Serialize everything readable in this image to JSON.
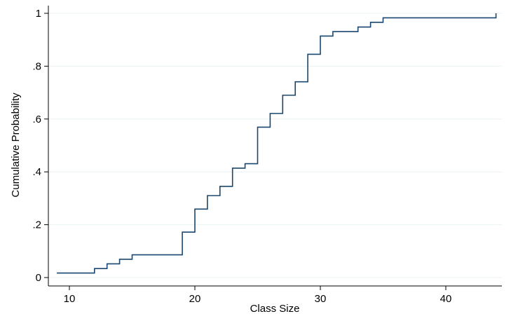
{
  "chart_data": {
    "type": "line",
    "step": true,
    "title": "",
    "xlabel": "Class Size",
    "ylabel": "Cumulative Probability",
    "xlim": [
      8,
      45
    ],
    "ylim": [
      0,
      1
    ],
    "x_ticks": [
      10,
      20,
      30,
      40
    ],
    "x_tick_labels": [
      "10",
      "20",
      "30",
      "40"
    ],
    "y_ticks": [
      0,
      0.2,
      0.4,
      0.6,
      0.8,
      1
    ],
    "y_tick_labels": [
      "0",
      ".2",
      ".4",
      ".6",
      ".8",
      "1"
    ],
    "grid": true,
    "legend": "none",
    "line_color": "#1a476f",
    "grid_color": "#eaf2f3",
    "series": [
      {
        "x": [
          9,
          12,
          13,
          14,
          15,
          19,
          20,
          21,
          22,
          23,
          24,
          25,
          26,
          27,
          28,
          29,
          30,
          31,
          33,
          34,
          35,
          44,
          44
        ],
        "y": [
          0.017,
          0.034,
          0.052,
          0.069,
          0.086,
          0.172,
          0.259,
          0.31,
          0.345,
          0.414,
          0.431,
          0.569,
          0.621,
          0.69,
          0.741,
          0.845,
          0.914,
          0.931,
          0.948,
          0.966,
          0.983,
          0.983,
          1.0
        ]
      }
    ]
  }
}
